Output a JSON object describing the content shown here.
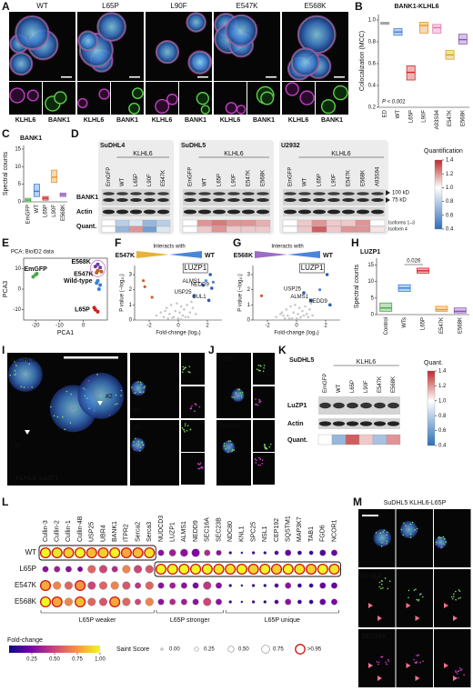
{
  "panels": {
    "A": {
      "label": "A",
      "conditions": [
        "WT",
        "L65P",
        "L90F",
        "E547K",
        "E568K"
      ],
      "channels": [
        "KLHL6",
        "BANK1"
      ]
    },
    "B": {
      "label": "B",
      "title": "BANK1-KLHL6",
      "y_label": "Colocalization (MCC)",
      "annotation": "P < 0.001",
      "categories": [
        "ED",
        "WT",
        "L65P",
        "L90F",
        "A93S94",
        "E547K",
        "E568K"
      ],
      "colors": [
        "#9e9e9e",
        "#3b7dd8",
        "#d02828",
        "#e8952e",
        "#e07bb5",
        "#d9a520",
        "#8a55b8"
      ],
      "q1": [
        0.96,
        0.86,
        0.45,
        0.88,
        0.88,
        0.64,
        0.78
      ],
      "median": [
        0.97,
        0.89,
        0.52,
        0.95,
        0.93,
        0.68,
        0.82
      ],
      "q3": [
        0.98,
        0.92,
        0.58,
        0.98,
        0.96,
        0.72,
        0.87
      ],
      "ylim": [
        0.2,
        1.05
      ],
      "yticks": [
        0.2,
        0.4,
        0.6,
        0.8,
        {
          "value": 1,
          "label": "1.0"
        }
      ]
    },
    "C": {
      "label": "C",
      "title": "BANK1",
      "y_label": "Spectral counts",
      "categories": [
        "EmGFP",
        "WT",
        "L65P",
        "L90F",
        "E568K"
      ],
      "colors": [
        "#4aa84a",
        "#3b7dd8",
        "#d02828",
        "#e8952e",
        "#8a55b8"
      ],
      "q1": [
        0,
        1.5,
        0.5,
        5.5,
        1.5
      ],
      "median": [
        0.5,
        3,
        1,
        7,
        2
      ],
      "q3": [
        1,
        5,
        1.5,
        9,
        2.5
      ],
      "ylim": [
        0,
        16
      ],
      "yticks": [
        0,
        5,
        10,
        15
      ]
    },
    "D": {
      "label": "D",
      "group_label": "KLHL6",
      "rows": [
        "BANK1",
        "Actin",
        "Quant."
      ],
      "cell_lines": [
        {
          "name": "SuDHL4",
          "lanes": [
            "EmGFP",
            "WT",
            "L65P",
            "L90F",
            "E547K"
          ],
          "quant": [
            [
              1,
              0.8,
              0.9,
              0.7,
              0.8
            ],
            [
              1,
              0.7,
              1.2,
              0.6,
              0.9
            ]
          ]
        },
        {
          "name": "SuDHL5",
          "lanes": [
            "EmGFP",
            "WT",
            "L65P",
            "L90F",
            "E547K",
            "E568K"
          ],
          "quant": [
            [
              1,
              1.2,
              1.25,
              1.2,
              1.2,
              1.15
            ],
            [
              1,
              1.1,
              1.2,
              1.1,
              1.1,
              1.1
            ]
          ]
        },
        {
          "name": "U2932",
          "lanes": [
            "EmGFP",
            "WT",
            "L65P",
            "L90F",
            "E547K",
            "E568K",
            "A93S94"
          ],
          "quant": [
            [
              1,
              1.1,
              1.2,
              1.1,
              1.1,
              1.2,
              1.0
            ],
            [
              1,
              1.1,
              1.3,
              1.1,
              1.2,
              1.2,
              1.05
            ]
          ]
        }
      ],
      "markers": [
        "100 kD",
        "75 kD"
      ],
      "quant_rows": [
        "Isoforms 1–3",
        "Isoform 4"
      ],
      "colorbar_title": "Quantification",
      "colorbar_lim": [
        0.4,
        1.4
      ],
      "colorbar_ticks": [
        0.4,
        0.6,
        0.8,
        {
          "value": 1,
          "label": "1.0"
        },
        1.2,
        1.4
      ]
    },
    "E": {
      "label": "E",
      "title": "PCA: BioID2 data",
      "x_label": "PCA1",
      "y_label": "PCA3",
      "xlim": [
        -25,
        10
      ],
      "ylim": [
        -15,
        15
      ],
      "xticks": [
        -20,
        -10,
        0
      ],
      "yticks": [
        -10,
        0,
        10
      ],
      "groups": [
        {
          "name": "E568K",
          "color": "#6a3d9a",
          "x": [
            5,
            6,
            7
          ],
          "y": [
            11,
            12,
            10.5
          ]
        },
        {
          "name": "E547K",
          "color": "#b8621e",
          "x": [
            6,
            7.5,
            5.5
          ],
          "y": [
            9,
            8.5,
            8
          ]
        },
        {
          "name": "EmGFP",
          "color": "#4aa84a",
          "x": [
            -20,
            -21,
            -19.5
          ],
          "y": [
            7,
            6,
            7.5
          ]
        },
        {
          "name": "Wild-type",
          "color": "#3b7dd8",
          "x": [
            6,
            7,
            5.5,
            6.5
          ],
          "y": [
            4,
            2,
            3,
            0
          ]
        },
        {
          "name": "L65P",
          "color": "#d02020",
          "x": [
            5,
            6,
            4.5
          ],
          "y": [
            -10,
            -11,
            -9
          ]
        }
      ]
    },
    "F": {
      "label": "F",
      "mutant": "E547K",
      "header": "Interacts with",
      "reference": "WT",
      "left_color": "#e8b13a",
      "right_color": "#4a86d8",
      "x_label": "Fold-change (log₂)",
      "y_label": "P value (−log₁₀)",
      "xlim": [
        -3,
        3
      ],
      "ylim": [
        0,
        3.6
      ],
      "xticks": [
        -2,
        0,
        2
      ],
      "yticks": [
        0,
        1,
        2,
        3
      ],
      "background": {
        "x": [
          -1.5,
          -1.2,
          -1,
          -0.8,
          -0.6,
          -0.5,
          -0.3,
          -0.2,
          -0.1,
          0,
          0.1,
          0.2,
          0.3,
          0.4,
          0.5,
          0.6,
          0.8,
          1,
          1.2,
          -0.7,
          0.7,
          -0.4,
          0.2,
          0.9,
          -0.9
        ],
        "y": [
          0.3,
          0.5,
          0.2,
          0.8,
          0.4,
          1.0,
          0.2,
          0.6,
          1.1,
          0.1,
          0.5,
          0.9,
          0.3,
          0.7,
          0.2,
          1.0,
          0.5,
          0.8,
          0.4,
          0.1,
          0.2,
          0.15,
          0.05,
          1.2,
          0.6
        ]
      },
      "left_points": {
        "x": [
          -2.4,
          -2.3,
          -1.8
        ],
        "y": [
          2.6,
          2.2,
          1.5
        ]
      },
      "right_points": {
        "x": [
          1.9,
          2.4
        ],
        "y": [
          2.6,
          2.5
        ]
      },
      "highlights": [
        {
          "name": "LUZP1",
          "x": 2.2,
          "y": 3.0
        },
        {
          "name": "ALMS1",
          "x": 1.7,
          "y": 2.3
        },
        {
          "name": "NEDD9",
          "x": 2.3,
          "y": 2.1
        },
        {
          "name": "USP25",
          "x": 1.1,
          "y": 1.6
        },
        {
          "name": "CUL1",
          "x": 2.1,
          "y": 1.3
        }
      ]
    },
    "G": {
      "label": "G",
      "mutant": "E568K",
      "header": "Interacts with",
      "reference": "WT",
      "left_color": "#9b6cc8",
      "right_color": "#4a86d8",
      "x_label": "Fold-change (log₂)",
      "y_label": "P value (−log₁₀)",
      "xlim": [
        -3,
        3
      ],
      "ylim": [
        0,
        3.6
      ],
      "xticks": [
        -2,
        0,
        2
      ],
      "yticks": [
        0,
        1,
        2,
        3
      ],
      "background": {
        "x": [
          -1.4,
          -1.1,
          -0.9,
          -0.7,
          -0.6,
          -0.4,
          -0.3,
          -0.2,
          -0.1,
          0,
          0.1,
          0.2,
          0.3,
          0.4,
          0.5,
          0.6,
          0.7,
          0.9,
          1.1,
          -0.8,
          0.8,
          -0.5,
          0.2,
          1.0,
          -1.0
        ],
        "y": [
          0.2,
          0.4,
          0.3,
          0.7,
          0.3,
          0.9,
          0.1,
          0.5,
          1.0,
          0.1,
          0.4,
          0.8,
          0.2,
          0.6,
          0.3,
          0.9,
          0.4,
          0.7,
          0.3,
          0.1,
          0.2,
          0.1,
          0.05,
          1.1,
          0.5
        ]
      },
      "left_points": {
        "x": [
          -2.4
        ],
        "y": [
          1.6
        ]
      },
      "right_points": {
        "x": [
          1.6
        ],
        "y": [
          2.0
        ]
      },
      "highlights": [
        {
          "name": "LUZP1",
          "x": 2.1,
          "y": 3.0
        },
        {
          "name": "USP25",
          "x": 0.5,
          "y": 1.8
        },
        {
          "name": "ALMS1",
          "x": 1.0,
          "y": 1.3
        },
        {
          "name": "NEDD9",
          "x": 2.3,
          "y": 1.0
        }
      ]
    },
    "H": {
      "label": "H",
      "title": "LUZP1",
      "y_label": "Spectral counts",
      "annotation": "0.026",
      "categories": [
        "Control",
        "WTs",
        "L65P",
        "E547K",
        "E568K"
      ],
      "colors": [
        "#4aa84a",
        "#3b7dd8",
        "#d02828",
        "#e8952e",
        "#8a55b8"
      ],
      "q1": [
        1,
        7,
        12.5,
        1,
        0.5
      ],
      "median": [
        2,
        8,
        13.2,
        1.5,
        1
      ],
      "q3": [
        3.5,
        9,
        14,
        2.5,
        2
      ],
      "ylim": [
        0,
        17
      ],
      "yticks": [
        0,
        5,
        10,
        15
      ]
    },
    "I": {
      "label": "I",
      "cell_line": "SuDHL5",
      "rois": [
        "#1",
        "#2"
      ],
      "channels": [
        "KLHL6",
        "LuZP1"
      ]
    },
    "J": {
      "label": "J",
      "cell_lines": [
        "U2932",
        "SuDHL4"
      ]
    },
    "K": {
      "label": "K",
      "cell_line": "SuDHL5",
      "group_label": "KLHL6",
      "lanes": [
        "EmGFP",
        "WT",
        "L65P",
        "L90F",
        "E547K",
        "E568K"
      ],
      "rows": [
        "LuZP1",
        "Actin",
        "Quant."
      ],
      "quant": [
        1,
        0.7,
        1.3,
        1.1,
        0.75,
        1.2
      ],
      "colorbar_title": "Quant.",
      "colorbar_lim": [
        0.4,
        1.4
      ],
      "colorbar_ticks": [
        0.4,
        0.6,
        0.8,
        {
          "value": 1,
          "label": "1.0"
        },
        1.2,
        1.4
      ]
    },
    "L": {
      "label": "L",
      "rows": [
        "WT",
        "L65P",
        "E547K",
        "E568K"
      ],
      "groups": [
        {
          "name": "L65P weaker",
          "proteins": [
            "Cullin-3",
            "Cullin-2",
            "Cullin-1",
            "Cullin-4B",
            "USP25",
            "UBR4",
            "BANK1",
            "ITPR2",
            "Serca2",
            "Serca3"
          ]
        },
        {
          "name": "L65P stronger",
          "proteins": [
            "NUDCD3",
            "LUZP1",
            "ALMS1",
            "NEDD9",
            "SEC16A",
            "SEC23B"
          ]
        },
        {
          "name": "L65P unique",
          "proteins": [
            "NDC80",
            "KNL1",
            "SPC25",
            "NSL1",
            "CEP192",
            "SQSTM1",
            "MAP3K7",
            "TAB1",
            "FGD6",
            "NCOR1"
          ]
        }
      ],
      "fold_change": [
        [
          1,
          0.95,
          0.9,
          1,
          0.85,
          0.9,
          1,
          0.8,
          0.85,
          0.95,
          0.3,
          0.35,
          0.3,
          0.25,
          0.4,
          0.3,
          0.1,
          0.05,
          0.1,
          0.1,
          0.15,
          0.2,
          0.1,
          0.1,
          0.15,
          0.2
        ],
        [
          0.3,
          0.35,
          0.3,
          0.25,
          0.6,
          0.5,
          0.4,
          0.7,
          0.5,
          0.55,
          1,
          1,
          1,
          1,
          1,
          0.95,
          0.95,
          1,
          0.9,
          1,
          0.9,
          1,
          0.95,
          0.9,
          1,
          0.95
        ],
        [
          0.8,
          0.7,
          0.6,
          0.75,
          0.5,
          0.6,
          0.7,
          0.55,
          0.45,
          0.6,
          0.3,
          0.35,
          0.3,
          0.25,
          0.45,
          0.3,
          0.1,
          0.05,
          0.1,
          0.05,
          0.15,
          0.3,
          0.1,
          0.1,
          0.2,
          0.2
        ],
        [
          1,
          0.8,
          0.7,
          0.85,
          0.6,
          0.55,
          0.8,
          0.6,
          0.5,
          0.7,
          0.3,
          0.4,
          0.35,
          0.3,
          0.5,
          0.3,
          0.1,
          0.05,
          0.1,
          0.05,
          0.15,
          0.3,
          0.1,
          0.1,
          0.2,
          0.25
        ]
      ],
      "saint": [
        [
          1,
          1,
          1,
          1,
          1,
          1,
          1,
          1,
          1,
          1,
          0.5,
          0.6,
          0.7,
          0.75,
          0.5,
          0.4,
          0.1,
          0,
          0.1,
          0.1,
          0.25,
          0.5,
          0.25,
          0.25,
          0.5,
          0.5
        ],
        [
          0.5,
          0.5,
          0.5,
          0.4,
          0.75,
          0.75,
          0.5,
          0.75,
          0.75,
          0.75,
          1,
          1,
          1,
          1,
          1,
          1,
          1,
          1,
          1,
          1,
          1,
          1,
          1,
          1,
          1,
          1
        ],
        [
          1,
          0.75,
          0.75,
          1,
          0.75,
          0.75,
          0.75,
          0.75,
          0.5,
          0.75,
          0.5,
          0.5,
          0.5,
          0.5,
          0.75,
          0.5,
          0.1,
          0,
          0.1,
          0.1,
          0.25,
          0.5,
          0.25,
          0.25,
          0.5,
          0.5
        ],
        [
          1,
          1,
          0.75,
          1,
          0.75,
          0.75,
          1,
          0.75,
          0.5,
          0.75,
          0.5,
          0.5,
          0.5,
          0.5,
          0.75,
          0.5,
          0.1,
          0,
          0.1,
          0.1,
          0.25,
          0.5,
          0.25,
          0.25,
          0.5,
          0.5
        ]
      ],
      "fold_change_title": "Fold-change",
      "fold_change_lim": [
        0,
        1
      ],
      "fold_change_ticks": [
        0.25,
        {
          "value": 0.5,
          "label": "0.50"
        },
        0.75,
        {
          "value": 1,
          "label": "1.00"
        }
      ],
      "saint_title": "Saint Score",
      "saint_ticks": [
        {
          "value": 0,
          "label": "0.00"
        },
        0.25,
        {
          "value": 0.5,
          "label": "0.50"
        },
        0.75,
        {
          "value": 0.95,
          "label": ">0.95"
        }
      ]
    },
    "M": {
      "label": "M",
      "title": "SuDHL5 KLHL6-L65P",
      "channels": [
        "KLHL6",
        "SEC16A"
      ]
    }
  }
}
